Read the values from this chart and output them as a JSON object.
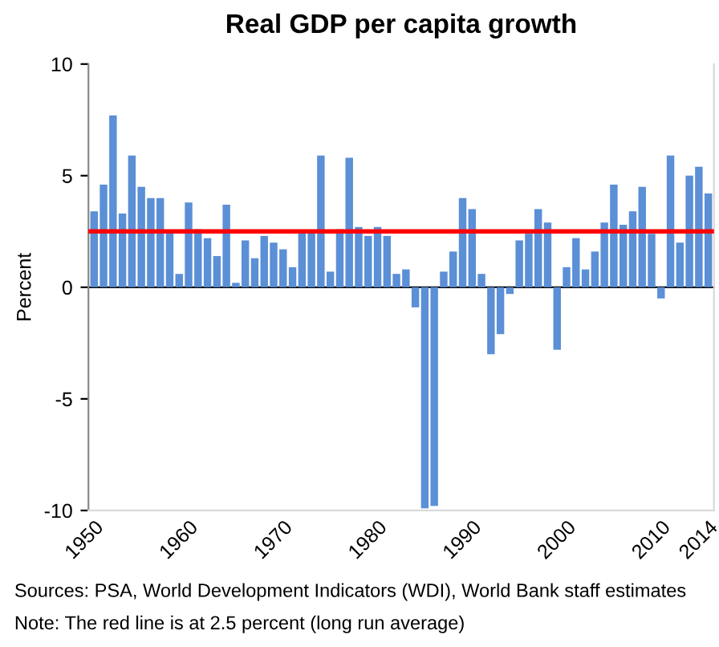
{
  "chart_data": {
    "type": "bar",
    "title": "Real GDP per capita growth",
    "ylabel": "Percent",
    "categories": [
      "1950",
      null,
      null,
      null,
      null,
      null,
      null,
      null,
      null,
      null,
      "1960",
      null,
      null,
      null,
      null,
      null,
      null,
      null,
      null,
      null,
      "1970",
      null,
      null,
      null,
      null,
      null,
      null,
      null,
      null,
      null,
      "1980",
      null,
      null,
      null,
      null,
      null,
      null,
      null,
      null,
      null,
      "1990",
      null,
      null,
      null,
      null,
      null,
      null,
      null,
      null,
      null,
      "2000",
      null,
      null,
      null,
      null,
      null,
      null,
      null,
      null,
      null,
      "2010",
      null,
      null,
      null,
      null,
      "2014"
    ],
    "values": [
      3.4,
      4.6,
      7.7,
      3.3,
      5.9,
      4.5,
      4.0,
      4.0,
      2.5,
      0.6,
      3.8,
      2.6,
      2.2,
      1.4,
      3.7,
      0.2,
      2.1,
      1.3,
      2.3,
      2.0,
      1.7,
      0.9,
      2.5,
      2.5,
      5.9,
      0.7,
      2.6,
      5.8,
      2.7,
      2.3,
      2.7,
      2.3,
      0.6,
      0.8,
      -0.9,
      -9.9,
      -9.8,
      0.7,
      1.6,
      4.0,
      3.5,
      0.6,
      -3.0,
      -2.1,
      -0.3,
      2.1,
      2.4,
      3.5,
      2.9,
      -2.8,
      0.9,
      2.2,
      0.8,
      1.6,
      2.9,
      4.6,
      2.8,
      3.4,
      4.5,
      2.4,
      -0.5,
      5.9,
      2.0,
      5.0,
      5.4,
      4.2
    ],
    "color": "#5b8fd6",
    "ylim": [
      -10,
      10
    ],
    "yticks": [
      -10,
      -5,
      0,
      5,
      10
    ],
    "ref_lines": [
      {
        "axis": "y",
        "value": 2.5,
        "color": "#ff0000"
      }
    ],
    "annotations": [
      "Sources: PSA, World Development Indicators (WDI), World Bank staff estimates",
      "Note: The red line is at 2.5 percent (long run average)"
    ]
  }
}
